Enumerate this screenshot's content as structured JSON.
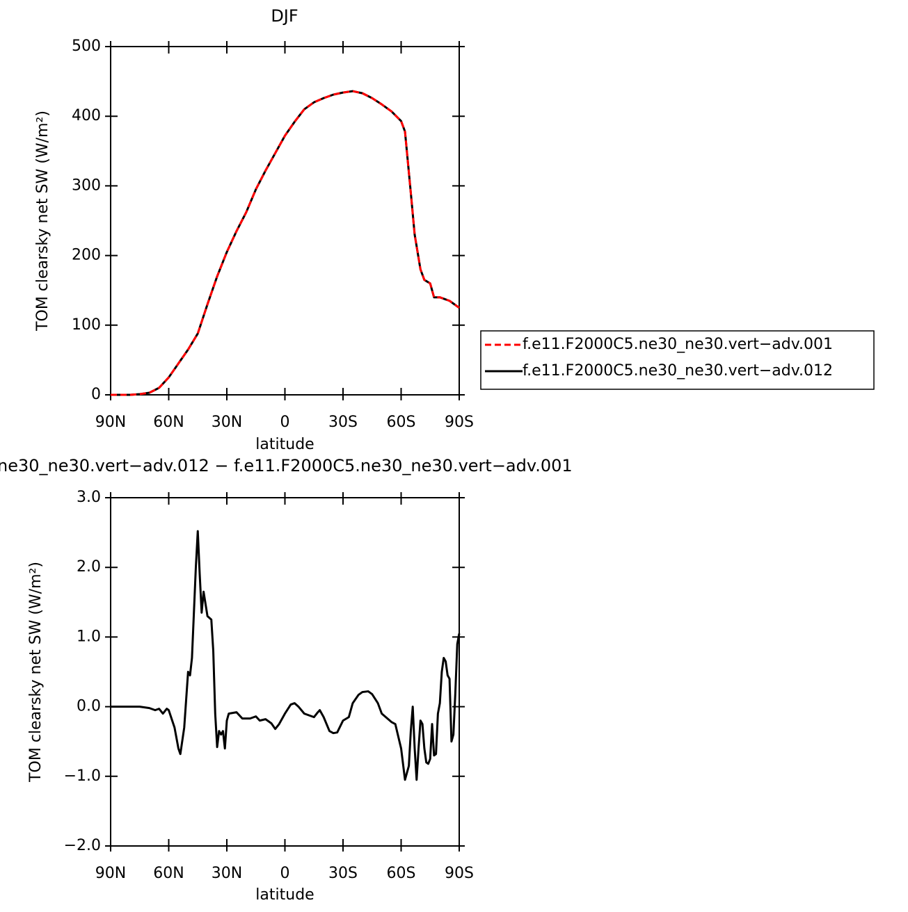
{
  "chart_data": [
    {
      "type": "line",
      "title": "DJF",
      "xlabel": "latitude",
      "ylabel": "TOM clearsky net SW (W/m²)",
      "x": [
        90,
        85,
        80,
        75,
        70,
        65,
        60,
        55,
        50,
        45,
        40,
        35,
        30,
        25,
        20,
        15,
        10,
        5,
        0,
        -5,
        -10,
        -15,
        -20,
        -25,
        -30,
        -35,
        -40,
        -45,
        -50,
        -55,
        -60,
        -62,
        -65,
        -67,
        -70,
        -72,
        -75,
        -77,
        -80,
        -85,
        -90
      ],
      "series": [
        {
          "name": "f.e11.F2000C5.ne30_ne30.vert−adv.001",
          "color": "#ff0000",
          "line_style": "dashed",
          "values": [
            0,
            0,
            0,
            1,
            3,
            10,
            25,
            45,
            65,
            88,
            130,
            170,
            205,
            235,
            262,
            295,
            322,
            347,
            372,
            392,
            410,
            420,
            426,
            431,
            434,
            436,
            433,
            426,
            417,
            407,
            393,
            378,
            290,
            230,
            180,
            165,
            160,
            140,
            140,
            135,
            125
          ]
        },
        {
          "name": "f.e11.F2000C5.ne30_ne30.vert−adv.012",
          "color": "#000000",
          "line_style": "solid",
          "values": [
            0,
            0,
            0,
            1,
            3,
            10,
            25,
            45,
            65,
            88,
            130,
            170,
            205,
            235,
            262,
            295,
            322,
            347,
            372,
            392,
            410,
            420,
            426,
            431,
            434,
            436,
            433,
            426,
            417,
            407,
            393,
            378,
            290,
            230,
            180,
            165,
            160,
            140,
            140,
            135,
            125
          ]
        }
      ],
      "xlim": [
        90,
        -90
      ],
      "xticks": [
        {
          "value": 90,
          "label": "90N"
        },
        {
          "value": 60,
          "label": "60N"
        },
        {
          "value": 30,
          "label": "30N"
        },
        0,
        {
          "value": -30,
          "label": "30S"
        },
        {
          "value": -60,
          "label": "60S"
        },
        {
          "value": -90,
          "label": "90S"
        }
      ],
      "ylim": [
        0,
        500
      ],
      "yticks": [
        0,
        100,
        200,
        300,
        400,
        500
      ],
      "grid": false,
      "legend": "right"
    },
    {
      "type": "line",
      "title": "ne30_ne30.vert−adv.012 − f.e11.F2000C5.ne30_ne30.vert−adv.001",
      "xlabel": "latitude",
      "ylabel": "TOM clearsky net SW (W/m²)",
      "x": [
        90,
        75,
        70,
        67,
        65,
        63,
        61,
        60,
        57,
        55,
        54,
        52,
        50,
        49,
        48,
        46,
        45,
        44,
        43,
        42,
        40,
        38,
        37,
        36,
        35,
        34,
        33,
        32,
        31,
        30,
        29,
        25,
        22,
        18,
        15,
        13,
        10,
        7,
        5,
        3,
        0,
        -3,
        -5,
        -7,
        -10,
        -15,
        -17,
        -18,
        -20,
        -23,
        -25,
        -27,
        -30,
        -33,
        -35,
        -38,
        -40,
        -43,
        -45,
        -48,
        -50,
        -55,
        -57,
        -60,
        -62,
        -64,
        -65,
        -66,
        -67,
        -68,
        -69,
        -70,
        -71,
        -72,
        -73,
        -74,
        -75,
        -76,
        -77,
        -78,
        -79,
        -80,
        -81,
        -82,
        -83,
        -84,
        -85,
        -86,
        -87,
        -88,
        -89,
        -90
      ],
      "values": [
        0,
        0,
        -0.02,
        -0.05,
        -0.03,
        -0.1,
        -0.03,
        -0.05,
        -0.3,
        -0.6,
        -0.68,
        -0.3,
        0.5,
        0.45,
        0.7,
        2.0,
        2.52,
        1.9,
        1.35,
        1.65,
        1.3,
        1.25,
        0.8,
        -0.1,
        -0.58,
        -0.35,
        -0.4,
        -0.35,
        -0.6,
        -0.2,
        -0.1,
        -0.08,
        -0.17,
        -0.17,
        -0.14,
        -0.2,
        -0.18,
        -0.24,
        -0.32,
        -0.25,
        -0.1,
        0.03,
        0.05,
        0,
        -0.1,
        -0.15,
        -0.08,
        -0.05,
        -0.15,
        -0.35,
        -0.38,
        -0.37,
        -0.2,
        -0.15,
        0.05,
        0.17,
        0.21,
        0.22,
        0.18,
        0.05,
        -0.1,
        -0.22,
        -0.25,
        -0.6,
        -1.05,
        -0.85,
        -0.35,
        0,
        -0.6,
        -1.05,
        -0.6,
        -0.2,
        -0.25,
        -0.6,
        -0.8,
        -0.82,
        -0.75,
        -0.25,
        -0.7,
        -0.68,
        -0.1,
        0.05,
        0.5,
        0.7,
        0.65,
        0.45,
        0.4,
        -0.5,
        -0.4,
        0.2,
        0.9,
        1.05
      ],
      "color": "#000000",
      "xlim": [
        90,
        -90
      ],
      "xticks": [
        {
          "value": 90,
          "label": "90N"
        },
        {
          "value": 60,
          "label": "60N"
        },
        {
          "value": 30,
          "label": "30N"
        },
        0,
        {
          "value": -30,
          "label": "30S"
        },
        {
          "value": -60,
          "label": "60S"
        },
        {
          "value": -90,
          "label": "90S"
        }
      ],
      "ylim": [
        -2,
        3
      ],
      "yticks": [
        {
          "value": 3,
          "label": "3.0"
        },
        {
          "value": 2,
          "label": "2.0"
        },
        {
          "value": 1,
          "label": "1.0"
        },
        {
          "value": 0,
          "label": "0.0"
        },
        {
          "value": -1,
          "label": "−1.0"
        },
        {
          "value": -2,
          "label": "−2.0"
        }
      ],
      "grid": false
    }
  ]
}
